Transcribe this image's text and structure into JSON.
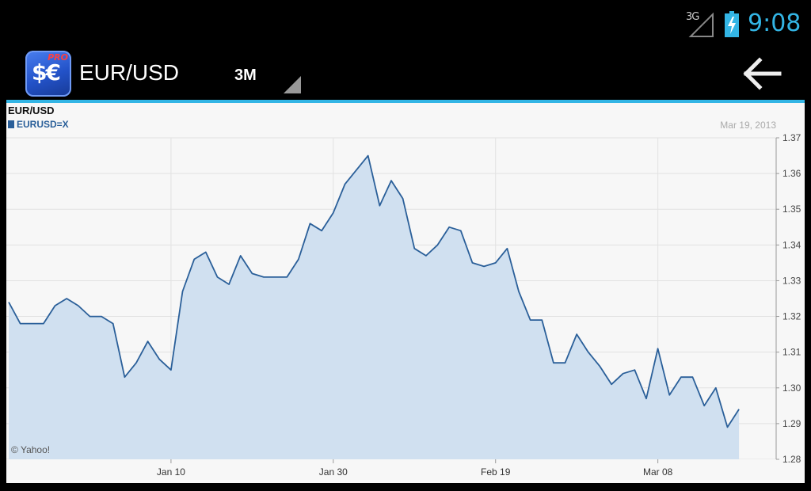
{
  "status_bar": {
    "network": "3G",
    "time": "9:08",
    "icons": [
      "signal-icon",
      "battery-charging-icon"
    ],
    "time_color": "#33b5e5"
  },
  "action_bar": {
    "app_icon_symbol": "$€",
    "app_icon_badge": "PRO",
    "title": "EUR/USD",
    "range": "3M",
    "back_icon": "arrow-left-icon"
  },
  "accent_color": "#33b5e5",
  "chart_data": {
    "type": "area",
    "title": "EUR/USD",
    "legend": [
      {
        "symbol": "EURUSD=X",
        "color": "#2a5f99"
      }
    ],
    "date_label": "Mar 19, 2013",
    "credit": "© Yahoo!",
    "y_axis": {
      "side": "right",
      "ylim": [
        1.28,
        1.37
      ],
      "ticks": [
        "1.37",
        "1.36",
        "1.35",
        "1.34",
        "1.33",
        "1.32",
        "1.31",
        "1.30",
        "1.29",
        "1.28"
      ]
    },
    "x_axis": {
      "ticks": [
        "Jan 10",
        "Jan 30",
        "Feb 19",
        "Mar 08"
      ],
      "tick_index": [
        14,
        28,
        42,
        56
      ]
    },
    "grid": true,
    "line_color": "#2a5f99",
    "fill_color": "#d0e0f0",
    "values": [
      1.324,
      1.318,
      1.318,
      1.318,
      1.323,
      1.325,
      1.323,
      1.32,
      1.32,
      1.318,
      1.303,
      1.307,
      1.313,
      1.308,
      1.305,
      1.327,
      1.336,
      1.338,
      1.331,
      1.329,
      1.337,
      1.332,
      1.331,
      1.331,
      1.331,
      1.336,
      1.346,
      1.344,
      1.349,
      1.357,
      1.361,
      1.365,
      1.351,
      1.358,
      1.353,
      1.339,
      1.337,
      1.34,
      1.345,
      1.344,
      1.335,
      1.334,
      1.335,
      1.339,
      1.327,
      1.319,
      1.319,
      1.307,
      1.307,
      1.315,
      1.31,
      1.306,
      1.301,
      1.304,
      1.305,
      1.297,
      1.311,
      1.298,
      1.303,
      1.303,
      1.295,
      1.3,
      1.289,
      1.294
    ]
  }
}
